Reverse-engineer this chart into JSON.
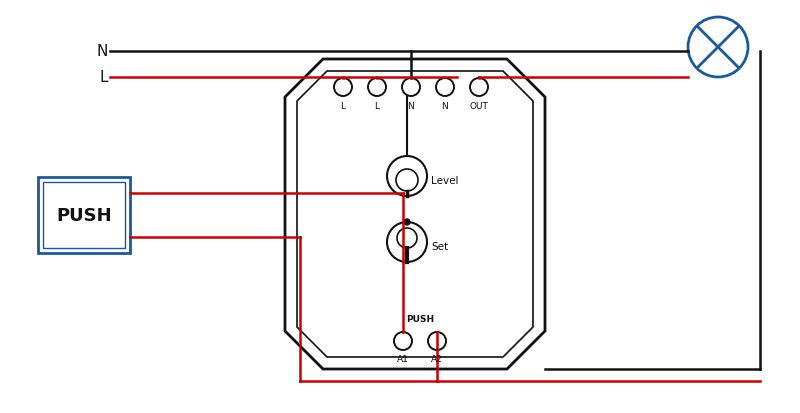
{
  "bg_color": "#ffffff",
  "wire_color_black": "#111111",
  "wire_color_red": "#cc0000",
  "device_outline": "#111111",
  "push_box_color": "#1a5a9a",
  "lamp_color": "#1a5a9a",
  "label_N": "N",
  "label_L": "L",
  "label_PUSH": "PUSH",
  "terminal_labels": [
    "L",
    "L",
    "N",
    "N",
    "OUT"
  ],
  "bottom_labels": [
    "A1",
    "A2"
  ],
  "label_Level": "Level",
  "label_Set": "Set",
  "label_PUSH_bottom": "PUSH",
  "figsize": [
    8.0,
    4.14
  ],
  "dpi": 100
}
